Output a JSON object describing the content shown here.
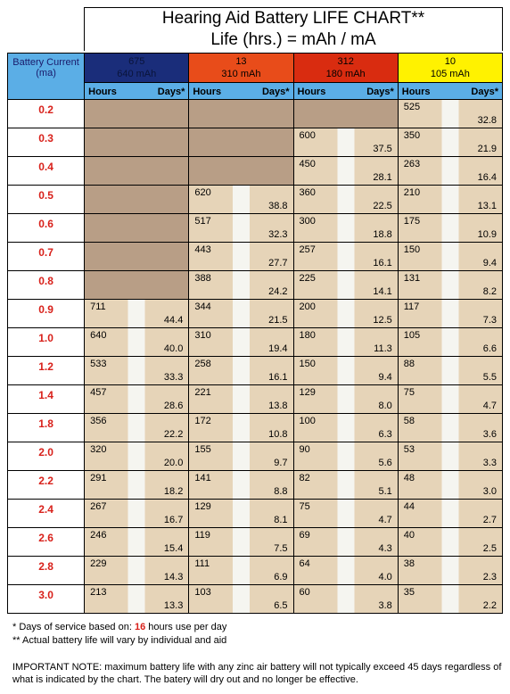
{
  "title_line1": "Hearing Aid Battery LIFE CHART**",
  "title_line2": "Life (hrs.) = mAh / mA",
  "row_header_line1": "Battery Current",
  "row_header_line2": "(ma)",
  "hours_label": "Hours",
  "days_label": "Days*",
  "batteries": [
    {
      "key": "b675",
      "num": "675",
      "mah": "640 mAh",
      "head_class": "batt-675"
    },
    {
      "key": "b13",
      "num": "13",
      "mah": "310 mAh",
      "head_class": "batt-13"
    },
    {
      "key": "b312",
      "num": "312",
      "mah": "180 mAh",
      "head_class": "batt-312"
    },
    {
      "key": "b10",
      "num": "10",
      "mah": "105 mAh",
      "head_class": "batt-10"
    }
  ],
  "rows": [
    {
      "ma": "0.2",
      "b675": null,
      "b13": null,
      "b312": null,
      "b10": {
        "h": "525",
        "d": "32.8"
      }
    },
    {
      "ma": "0.3",
      "b675": null,
      "b13": null,
      "b312": {
        "h": "600",
        "d": "37.5"
      },
      "b10": {
        "h": "350",
        "d": "21.9"
      }
    },
    {
      "ma": "0.4",
      "b675": null,
      "b13": null,
      "b312": {
        "h": "450",
        "d": "28.1"
      },
      "b10": {
        "h": "263",
        "d": "16.4"
      }
    },
    {
      "ma": "0.5",
      "b675": null,
      "b13": {
        "h": "620",
        "d": "38.8"
      },
      "b312": {
        "h": "360",
        "d": "22.5"
      },
      "b10": {
        "h": "210",
        "d": "13.1"
      }
    },
    {
      "ma": "0.6",
      "b675": null,
      "b13": {
        "h": "517",
        "d": "32.3"
      },
      "b312": {
        "h": "300",
        "d": "18.8"
      },
      "b10": {
        "h": "175",
        "d": "10.9"
      }
    },
    {
      "ma": "0.7",
      "b675": null,
      "b13": {
        "h": "443",
        "d": "27.7"
      },
      "b312": {
        "h": "257",
        "d": "16.1"
      },
      "b10": {
        "h": "150",
        "d": "9.4"
      }
    },
    {
      "ma": "0.8",
      "b675": null,
      "b13": {
        "h": "388",
        "d": "24.2"
      },
      "b312": {
        "h": "225",
        "d": "14.1"
      },
      "b10": {
        "h": "131",
        "d": "8.2"
      }
    },
    {
      "ma": "0.9",
      "b675": {
        "h": "711",
        "d": "44.4"
      },
      "b13": {
        "h": "344",
        "d": "21.5"
      },
      "b312": {
        "h": "200",
        "d": "12.5"
      },
      "b10": {
        "h": "117",
        "d": "7.3"
      }
    },
    {
      "ma": "1.0",
      "b675": {
        "h": "640",
        "d": "40.0"
      },
      "b13": {
        "h": "310",
        "d": "19.4"
      },
      "b312": {
        "h": "180",
        "d": "11.3"
      },
      "b10": {
        "h": "105",
        "d": "6.6"
      }
    },
    {
      "ma": "1.2",
      "b675": {
        "h": "533",
        "d": "33.3"
      },
      "b13": {
        "h": "258",
        "d": "16.1"
      },
      "b312": {
        "h": "150",
        "d": "9.4"
      },
      "b10": {
        "h": "88",
        "d": "5.5"
      }
    },
    {
      "ma": "1.4",
      "b675": {
        "h": "457",
        "d": "28.6"
      },
      "b13": {
        "h": "221",
        "d": "13.8"
      },
      "b312": {
        "h": "129",
        "d": "8.0"
      },
      "b10": {
        "h": "75",
        "d": "4.7"
      }
    },
    {
      "ma": "1.8",
      "b675": {
        "h": "356",
        "d": "22.2"
      },
      "b13": {
        "h": "172",
        "d": "10.8"
      },
      "b312": {
        "h": "100",
        "d": "6.3"
      },
      "b10": {
        "h": "58",
        "d": "3.6"
      }
    },
    {
      "ma": "2.0",
      "b675": {
        "h": "320",
        "d": "20.0"
      },
      "b13": {
        "h": "155",
        "d": "9.7"
      },
      "b312": {
        "h": "90",
        "d": "5.6"
      },
      "b10": {
        "h": "53",
        "d": "3.3"
      }
    },
    {
      "ma": "2.2",
      "b675": {
        "h": "291",
        "d": "18.2"
      },
      "b13": {
        "h": "141",
        "d": "8.8"
      },
      "b312": {
        "h": "82",
        "d": "5.1"
      },
      "b10": {
        "h": "48",
        "d": "3.0"
      }
    },
    {
      "ma": "2.4",
      "b675": {
        "h": "267",
        "d": "16.7"
      },
      "b13": {
        "h": "129",
        "d": "8.1"
      },
      "b312": {
        "h": "75",
        "d": "4.7"
      },
      "b10": {
        "h": "44",
        "d": "2.7"
      }
    },
    {
      "ma": "2.6",
      "b675": {
        "h": "246",
        "d": "15.4"
      },
      "b13": {
        "h": "119",
        "d": "7.5"
      },
      "b312": {
        "h": "69",
        "d": "4.3"
      },
      "b10": {
        "h": "40",
        "d": "2.5"
      }
    },
    {
      "ma": "2.8",
      "b675": {
        "h": "229",
        "d": "14.3"
      },
      "b13": {
        "h": "111",
        "d": "6.9"
      },
      "b312": {
        "h": "64",
        "d": "4.0"
      },
      "b10": {
        "h": "38",
        "d": "2.3"
      }
    },
    {
      "ma": "3.0",
      "b675": {
        "h": "213",
        "d": "13.3"
      },
      "b13": {
        "h": "103",
        "d": "6.5"
      },
      "b312": {
        "h": "60",
        "d": "3.8"
      },
      "b10": {
        "h": "35",
        "d": "2.2"
      }
    }
  ],
  "footnote_days_prefix": "  * Days of service based on: ",
  "footnote_days_value": "16",
  "footnote_days_suffix": " hours use per day",
  "footnote_actual": " ** Actual battery life will vary by individual and aid",
  "note_label": "IMPORTANT NOTE: ",
  "note_text": "maximum battery life with any zinc air battery will not typically exceed 45 days regardless of what is indicated by the chart. The batery will dry out and no longer be effective."
}
